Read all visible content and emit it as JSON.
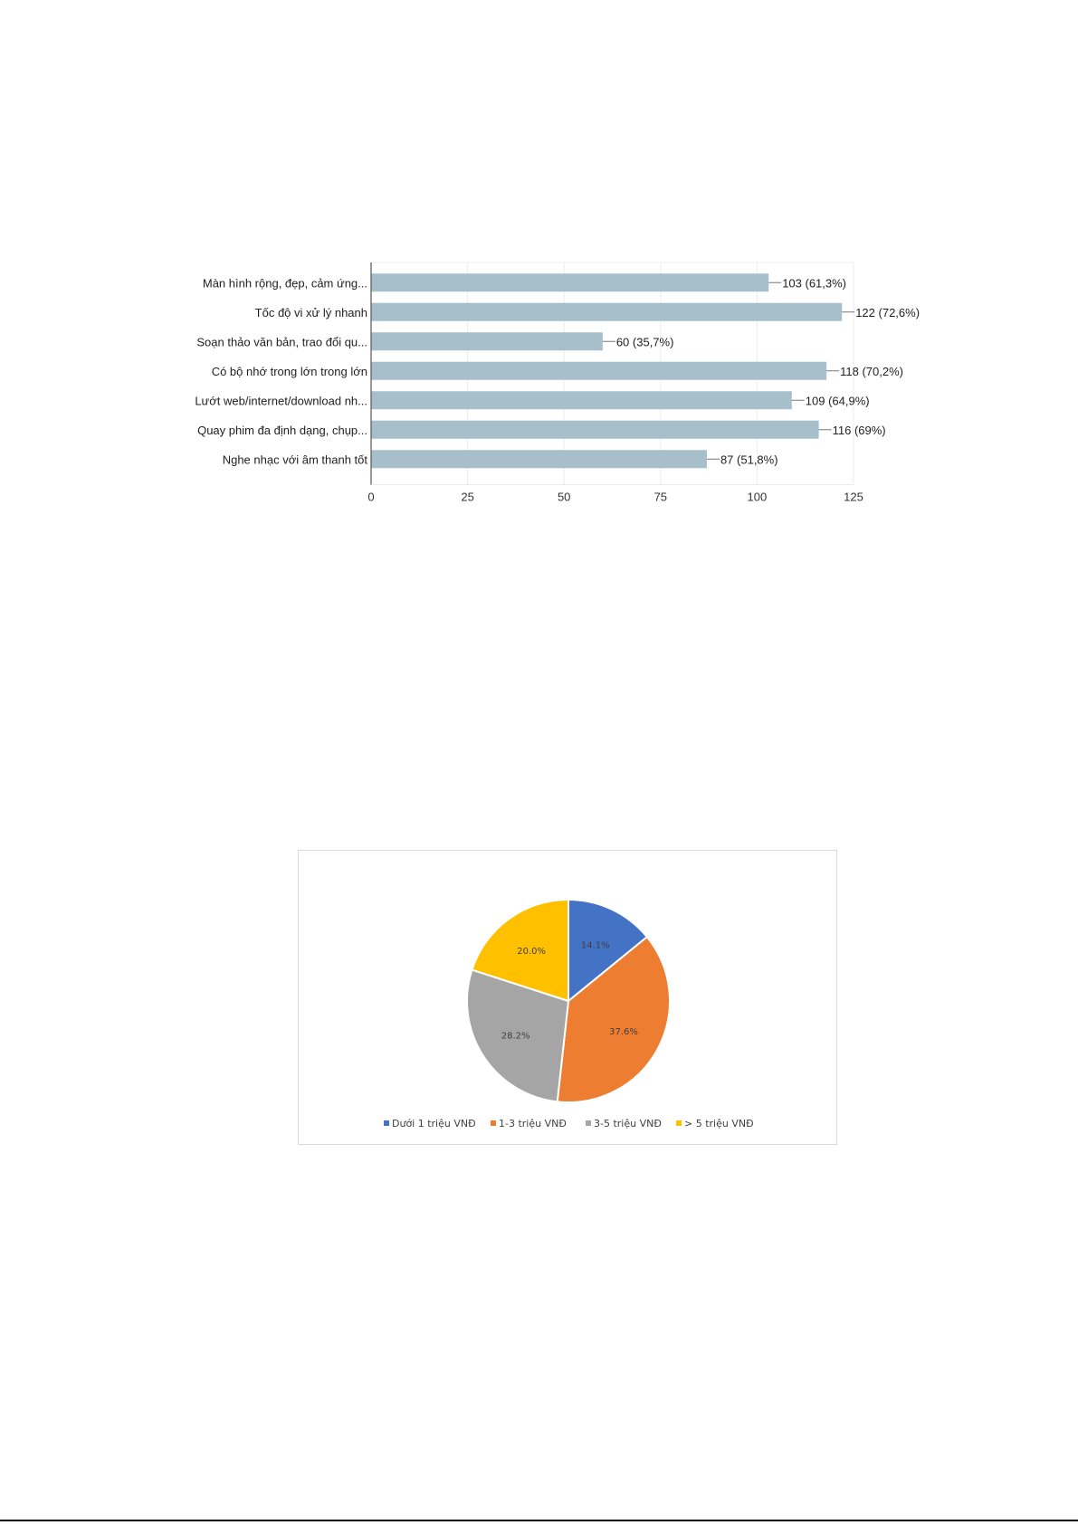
{
  "chart_data": [
    {
      "type": "bar",
      "orientation": "horizontal",
      "categories": [
        "Màn hình rộng, đẹp, cảm ứng...",
        "Tốc độ vi xử lý nhanh",
        "Soạn thảo văn bản, trao đổi qu...",
        "Có bộ nhớ trong lớn trong lớn",
        "Lướt web/internet/download nh...",
        "Quay phim đa định dạng, chụp...",
        "Nghe nhạc với âm thanh tốt"
      ],
      "values": [
        103,
        122,
        60,
        118,
        109,
        116,
        87
      ],
      "data_labels": [
        "103 (61,3%)",
        "122 (72,6%)",
        "60 (35,7%)",
        "118 (70,2%)",
        "109 (64,9%)",
        "116 (69%)",
        "87 (51,8%)"
      ],
      "xlim": [
        0,
        125
      ],
      "x_ticks": [
        "0",
        "25",
        "50",
        "75",
        "100",
        "125"
      ],
      "bar_color": "#a6bfca",
      "grid": true
    },
    {
      "type": "pie",
      "categories": [
        "Dưới 1 triệu VNĐ",
        "1-3 triệu VNĐ",
        "3-5 triệu VNĐ",
        "> 5 triệu VNĐ"
      ],
      "values": [
        14.1,
        37.6,
        28.2,
        20.0
      ],
      "data_labels": [
        "14.1%",
        "37.6%",
        "28.2%",
        "20.0%"
      ],
      "colors": [
        "#4472c4",
        "#ed7d31",
        "#a5a5a5",
        "#ffc000"
      ],
      "legend_position": "bottom"
    }
  ]
}
